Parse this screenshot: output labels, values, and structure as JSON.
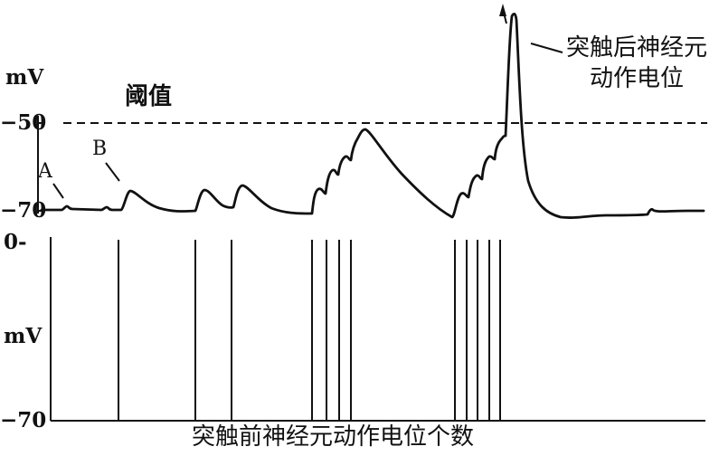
{
  "top_panel": {
    "unit_label": "mV",
    "tick_minus50": "−50",
    "tick_minus70": "−70",
    "threshold_label": "阈值",
    "marker_a": "A",
    "marker_b": "B",
    "postsynaptic_label_line1": "突触后神经元",
    "postsynaptic_label_line2": "动作电位"
  },
  "bottom_panel": {
    "unit_label": "mV",
    "tick_zero": "0-",
    "tick_minus70": "−70",
    "caption": "突触前神经元动作电位个数"
  },
  "colors": {
    "ink": "#111111",
    "background": "#ffffff"
  },
  "presynaptic_spike_groups": [
    1,
    1,
    1,
    4,
    5
  ]
}
